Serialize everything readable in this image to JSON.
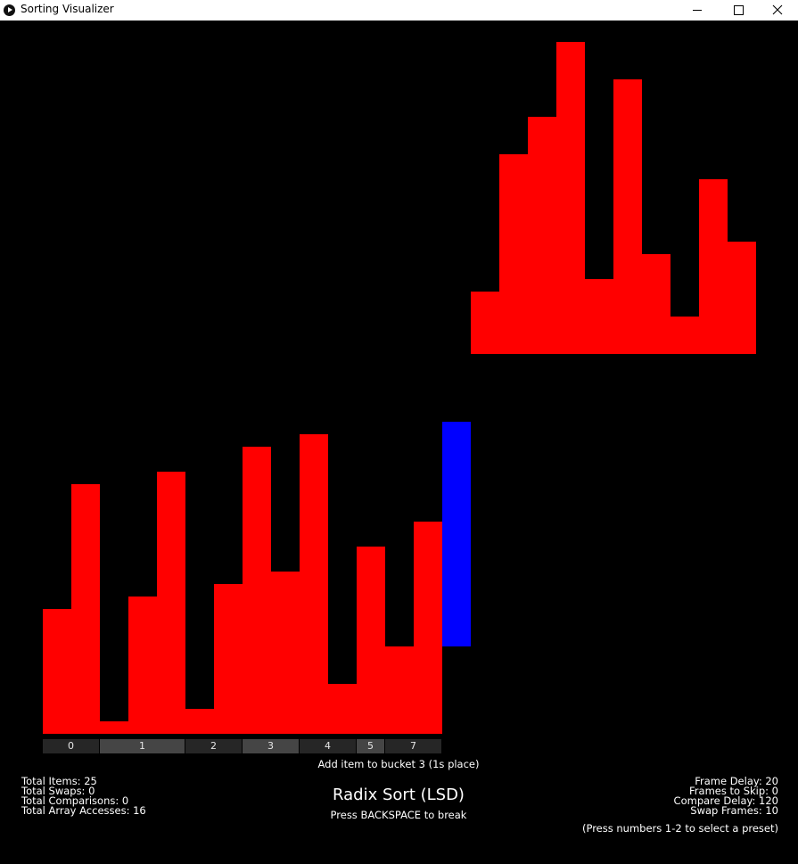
{
  "window": {
    "title": "Sorting Visualizer"
  },
  "visualizer": {
    "main_values": [
      10,
      20,
      1,
      11,
      21,
      2,
      12,
      23,
      13,
      24,
      4,
      15,
      7,
      17
    ],
    "active_value": 18,
    "aux_values": [
      5,
      16,
      19,
      25,
      6,
      22,
      8,
      3,
      14,
      9
    ],
    "max_value": 25,
    "colors": {
      "bar": "#ff0000",
      "active": "#0000ff",
      "background": "#000000",
      "bucket_a": "#262626",
      "bucket_b": "#454545"
    }
  },
  "buckets": [
    {
      "label": "0",
      "span": 2
    },
    {
      "label": "1",
      "span": 3
    },
    {
      "label": "2",
      "span": 2
    },
    {
      "label": "3",
      "span": 2
    },
    {
      "label": "4",
      "span": 2
    },
    {
      "label": "5",
      "span": 1
    },
    {
      "label": "7",
      "span": 2
    }
  ],
  "status": {
    "action": "Add item to bucket 3 (1s place)"
  },
  "stats": {
    "total_items": "Total Items: 25",
    "total_swaps": "Total Swaps: 0",
    "total_comparisons": "Total Comparisons: 0",
    "total_array_accesses": "Total Array Accesses: 16"
  },
  "algorithm": {
    "name": "Radix Sort (LSD)",
    "hint": "Press BACKSPACE to break"
  },
  "settings": {
    "frame_delay": "Frame Delay: 20",
    "frames_to_skip": "Frames to Skip: 0",
    "compare_delay": "Compare Delay: 120",
    "swap_frames": "Swap Frames: 10",
    "preset_hint": "(Press numbers 1-2 to select a preset)"
  }
}
